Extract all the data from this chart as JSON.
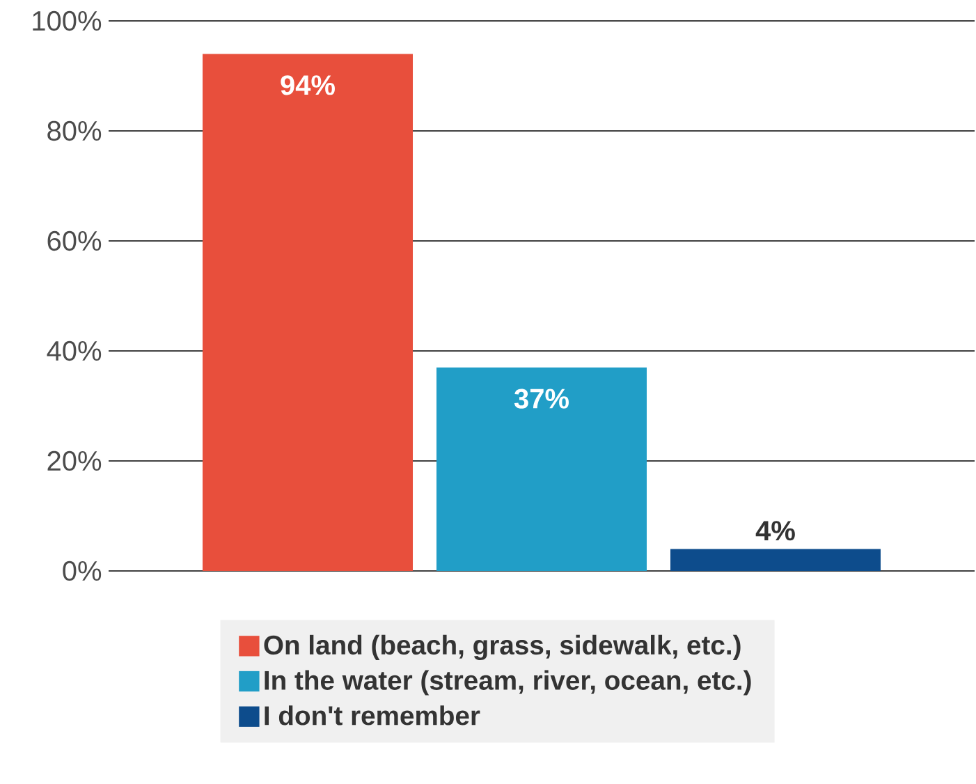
{
  "chart_data": {
    "type": "bar",
    "categories": [
      null
    ],
    "series": [
      {
        "name": "On land (beach, grass, sidewalk, etc.)",
        "color": "#e84f3c",
        "values": [
          94
        ],
        "value_labels": [
          "94%"
        ]
      },
      {
        "name": "In the water (stream, river, ocean, etc.)",
        "color": "#219ec7",
        "values": [
          37
        ],
        "value_labels": [
          "37%"
        ]
      },
      {
        "name": "I don't remember",
        "color": "#0d4c8c",
        "values": [
          4
        ],
        "value_labels": [
          "4%"
        ]
      }
    ],
    "ylim": [
      0,
      100
    ],
    "yticks": [
      {
        "value": 0,
        "label": "0%"
      },
      {
        "value": 20,
        "label": "20%"
      },
      {
        "value": 40,
        "label": "40%"
      },
      {
        "value": 60,
        "label": "60%"
      },
      {
        "value": 80,
        "label": "80%"
      },
      {
        "value": 100,
        "label": "100%"
      }
    ],
    "grid": "y",
    "legend": "bottom"
  }
}
